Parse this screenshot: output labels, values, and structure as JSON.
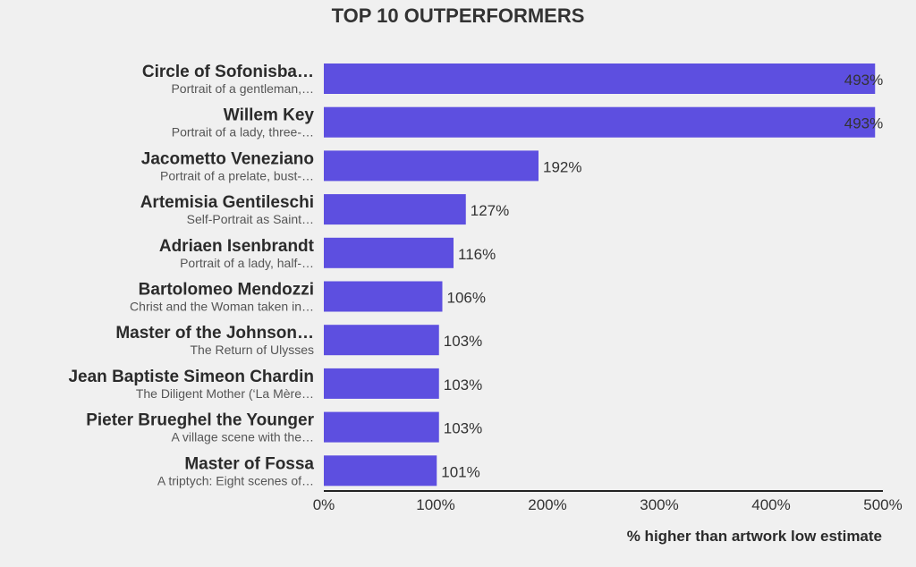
{
  "chart_data": {
    "type": "bar",
    "orientation": "horizontal",
    "title": "TOP 10 OUTPERFORMERS",
    "xlabel": "% higher than artwork low estimate",
    "ylabel": "",
    "xlim": [
      0,
      500
    ],
    "xticks": [
      {
        "value": 0,
        "label": "0%"
      },
      {
        "value": 100,
        "label": "100%"
      },
      {
        "value": 200,
        "label": "200%"
      },
      {
        "value": 300,
        "label": "300%"
      },
      {
        "value": 400,
        "label": "400%"
      },
      {
        "value": 500,
        "label": "500%"
      }
    ],
    "grid": false,
    "bar_color": "#5d4fe0",
    "items": [
      {
        "artist": "Circle of Sofonisba…",
        "artwork": "Portrait of a gentleman,…",
        "value": 493,
        "label": "493%"
      },
      {
        "artist": "Willem Key",
        "artwork": "Portrait of a lady, three-…",
        "value": 493,
        "label": "493%"
      },
      {
        "artist": "Jacometto Veneziano",
        "artwork": "Portrait of a prelate, bust-…",
        "value": 192,
        "label": "192%"
      },
      {
        "artist": "Artemisia Gentileschi",
        "artwork": "Self-Portrait as Saint…",
        "value": 127,
        "label": "127%"
      },
      {
        "artist": "Adriaen Isenbrandt",
        "artwork": "Portrait of a lady, half-…",
        "value": 116,
        "label": "116%"
      },
      {
        "artist": "Bartolomeo Mendozzi",
        "artwork": "Christ and the Woman taken in…",
        "value": 106,
        "label": "106%"
      },
      {
        "artist": "Master of the Johnson…",
        "artwork": "The Return of Ulysses",
        "value": 103,
        "label": "103%"
      },
      {
        "artist": "Jean Baptiste Simeon Chardin",
        "artwork": "The Diligent Mother (‘La Mère…",
        "value": 103,
        "label": "103%"
      },
      {
        "artist": "Pieter Brueghel the Younger",
        "artwork": "A village scene with the…",
        "value": 103,
        "label": "103%"
      },
      {
        "artist": "Master of Fossa",
        "artwork": "A triptych: Eight scenes of…",
        "value": 101,
        "label": "101%"
      }
    ]
  }
}
